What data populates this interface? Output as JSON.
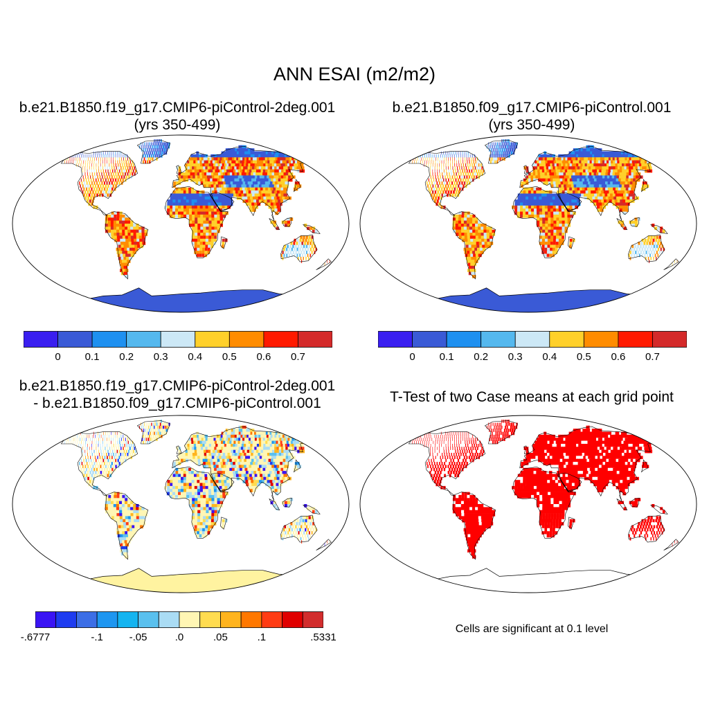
{
  "title": "ANN ESAI (m2/m2)",
  "panels": [
    {
      "id": "case1",
      "title_lines": [
        "b.e21.B1850.f19_g17.CMIP6-piControl-2deg.001",
        "(yrs 350-499)"
      ],
      "field": "esai_case"
    },
    {
      "id": "case2",
      "title_lines": [
        "b.e21.B1850.f09_g17.CMIP6-piControl.001",
        "(yrs 350-499)"
      ],
      "field": "esai_case"
    },
    {
      "id": "diff",
      "title_lines": [
        "b.e21.B1850.f19_g17.CMIP6-piControl-2deg.001",
        "- b.e21.B1850.f09_g17.CMIP6-piControl.001"
      ],
      "field": "difference"
    },
    {
      "id": "ttest",
      "title_lines": [
        "T-Test of two Case means at each grid point"
      ],
      "field": "significance",
      "note": "Cells are significant at 0.1 level"
    }
  ],
  "colorbar_abs": {
    "colors": [
      "#3a1ff0",
      "#3a5ad6",
      "#1e90f0",
      "#55b8ee",
      "#cce8f6",
      "#ffd02a",
      "#ff8c00",
      "#ff1a00",
      "#d42a2a"
    ],
    "labels": [
      "0",
      "0.1",
      "0.2",
      "0.3",
      "0.4",
      "0.5",
      "0.6",
      "0.7"
    ]
  },
  "colorbar_diff": {
    "colors": [
      "#3a14f4",
      "#1e3cf0",
      "#3c6ee6",
      "#1e96f0",
      "#14b4f0",
      "#5ac0ee",
      "#aadcf4",
      "#fff6b4",
      "#ffdc50",
      "#ffb41e",
      "#ff7800",
      "#ff3c14",
      "#e00000",
      "#d22d2d"
    ],
    "labels": [
      "-.6777",
      "-.1",
      "-.05",
      ".0",
      ".05",
      ".1",
      ".5331"
    ]
  },
  "significance_color": "#ff0000",
  "antarctica_color_abs": "#3a5ad6",
  "antarctica_color_diff": "#fff3a0"
}
